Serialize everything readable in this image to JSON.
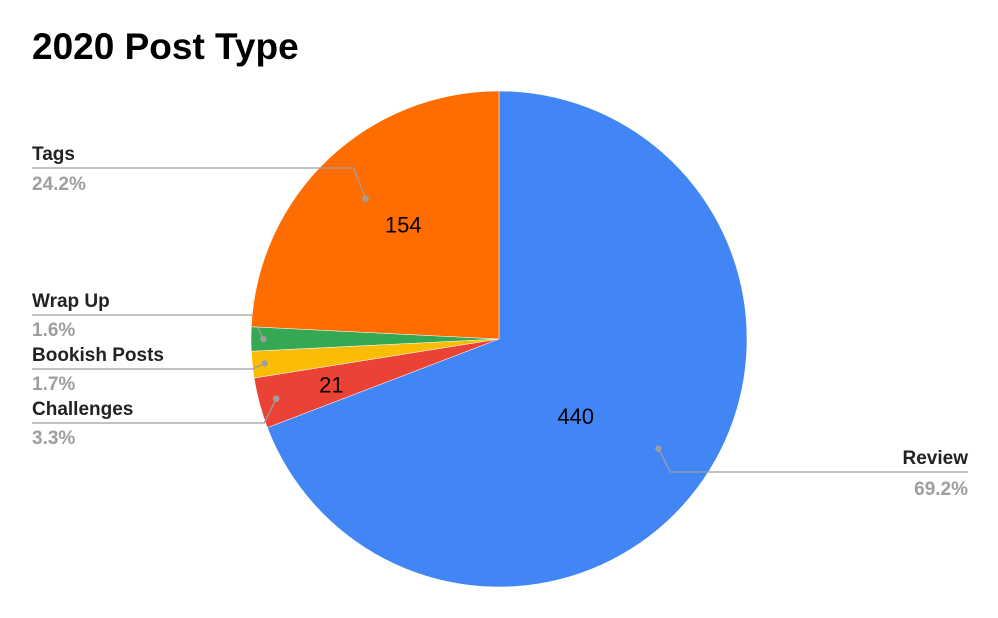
{
  "chart_data": {
    "type": "pie",
    "title": "2020 Post Type",
    "slices": [
      {
        "label": "Review",
        "value": 440,
        "percent": "69.2%",
        "color": "#4285f4",
        "value_label": "440"
      },
      {
        "label": "Challenges",
        "value": 21,
        "percent": "3.3%",
        "color": "#ea4335",
        "value_label": "21"
      },
      {
        "label": "Bookish Posts",
        "value": 11,
        "percent": "1.7%",
        "color": "#fbbc04",
        "value_label": ""
      },
      {
        "label": "Wrap Up",
        "value": 10,
        "percent": "1.6%",
        "color": "#34a853",
        "value_label": ""
      },
      {
        "label": "Tags",
        "value": 154,
        "percent": "24.2%",
        "color": "#ff6d01",
        "value_label": "154"
      }
    ],
    "legend": "none"
  }
}
